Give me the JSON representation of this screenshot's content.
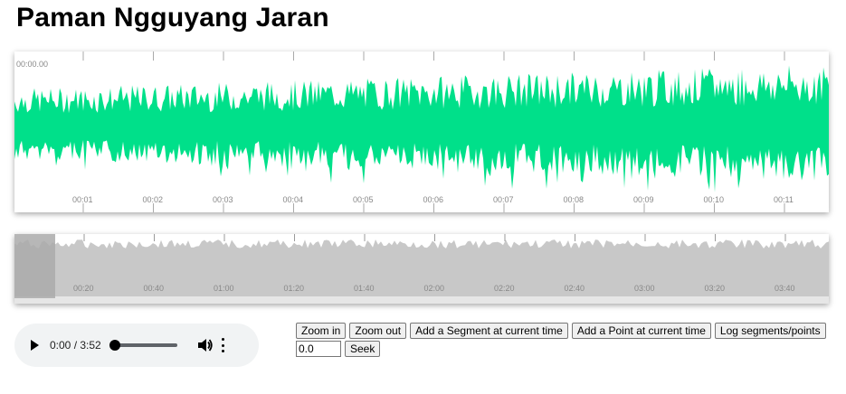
{
  "page": {
    "title": "Paman Ngguyang Jaran"
  },
  "zoomview": {
    "start_time": "00:00.00",
    "tick_labels": [
      "00:01",
      "00:02",
      "00:03",
      "00:04",
      "00:05",
      "00:06",
      "00:07",
      "00:08",
      "00:09",
      "00:10",
      "00:11"
    ],
    "waveform_color": "#00e08a",
    "axis_color": "#aaaaaa"
  },
  "overview": {
    "tick_labels": [
      "00:20",
      "00:40",
      "01:00",
      "01:20",
      "01:40",
      "02:00",
      "02:20",
      "02:40",
      "03:00",
      "03:20",
      "03:40"
    ],
    "waveform_color": "#c8c8c8",
    "highlight_color": "#aaaaaa",
    "highlight_start_fraction": 0.0,
    "highlight_end_fraction": 0.05
  },
  "player": {
    "time_display": "0:00 / 3:52",
    "icons": {
      "play": "play-icon",
      "volume": "volume-icon",
      "more": "more-options-icon"
    },
    "progress_fraction": 0.0
  },
  "controls": {
    "zoom_in": "Zoom in",
    "zoom_out": "Zoom out",
    "add_segment": "Add a Segment at current time",
    "add_point": "Add a Point at current time",
    "log": "Log segments/points",
    "seek_value": "0.0",
    "seek": "Seek"
  }
}
